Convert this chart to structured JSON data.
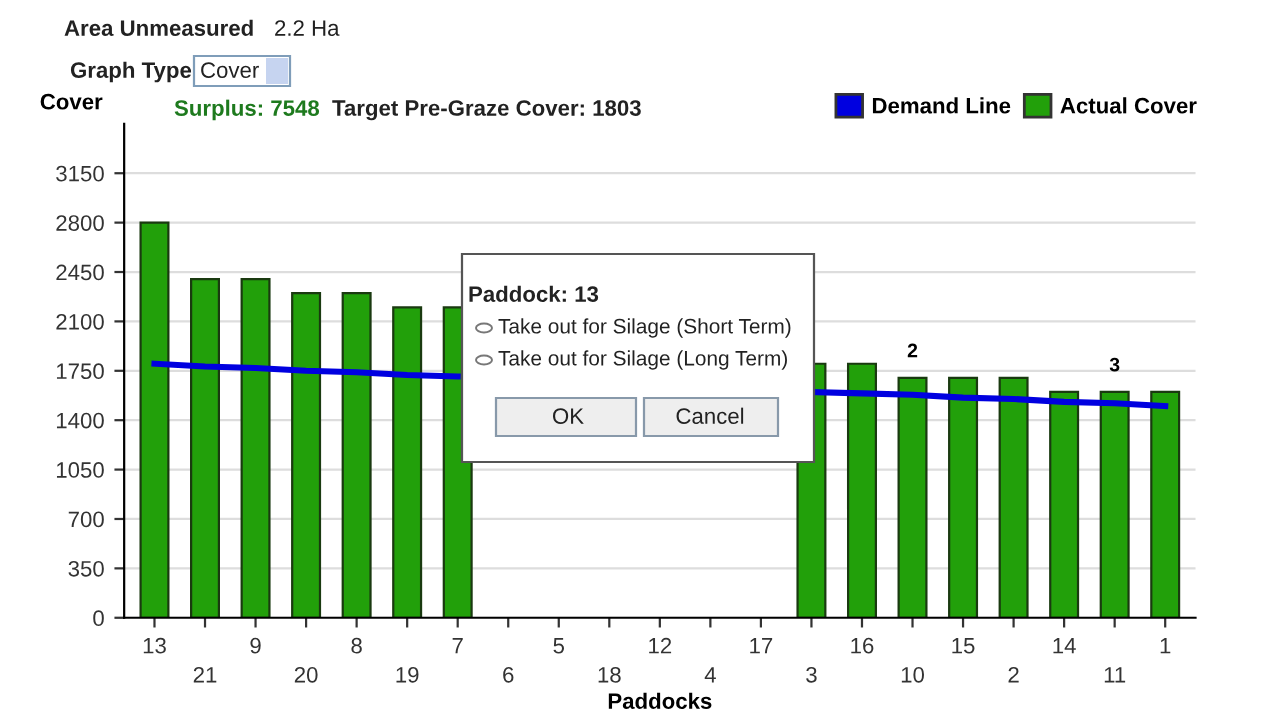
{
  "chart_data": {
    "type": "bar",
    "ylabel": "Cover",
    "xlabel": "Paddocks",
    "categories": [
      "13",
      "21",
      "9",
      "20",
      "8",
      "19",
      "7",
      "6",
      "5",
      "18",
      "12",
      "4",
      "17",
      "3",
      "16",
      "10",
      "15",
      "2",
      "14",
      "11",
      "1"
    ],
    "series": [
      {
        "name": "Actual Cover",
        "color": "#22a00a",
        "values": [
          2800,
          2400,
          2400,
          2300,
          2300,
          2200,
          2200,
          null,
          null,
          null,
          null,
          null,
          null,
          1800,
          1800,
          1700,
          1700,
          1700,
          1600,
          1600,
          1600
        ]
      },
      {
        "name": "Demand Line",
        "type": "line",
        "color": "#0000e0",
        "values": [
          1800,
          1780,
          1770,
          1750,
          1740,
          1720,
          1710,
          null,
          null,
          null,
          null,
          null,
          null,
          1600,
          1590,
          1580,
          1560,
          1550,
          1530,
          1520,
          1500
        ]
      }
    ],
    "ylim": [
      0,
      3500
    ],
    "yticks": [
      0,
      350,
      700,
      1050,
      1400,
      1750,
      2100,
      2450,
      2800,
      3150
    ],
    "grid": "y",
    "legend": "top right",
    "annotations": [
      "Area Unmeasured",
      "2.2 Ha",
      "Graph Type",
      "Cover",
      "Surplus: 7548",
      "Target Pre-Graze Cover: 1803",
      "Paddock: 13",
      "Take out for Silage (Short Term)",
      "Take out for Silage (Long Term)",
      "OK",
      "Cancel",
      {
        "text": "2",
        "x": "10",
        "y": 1700
      },
      {
        "text": "3",
        "x": "11",
        "y": 1600
      }
    ]
  }
}
